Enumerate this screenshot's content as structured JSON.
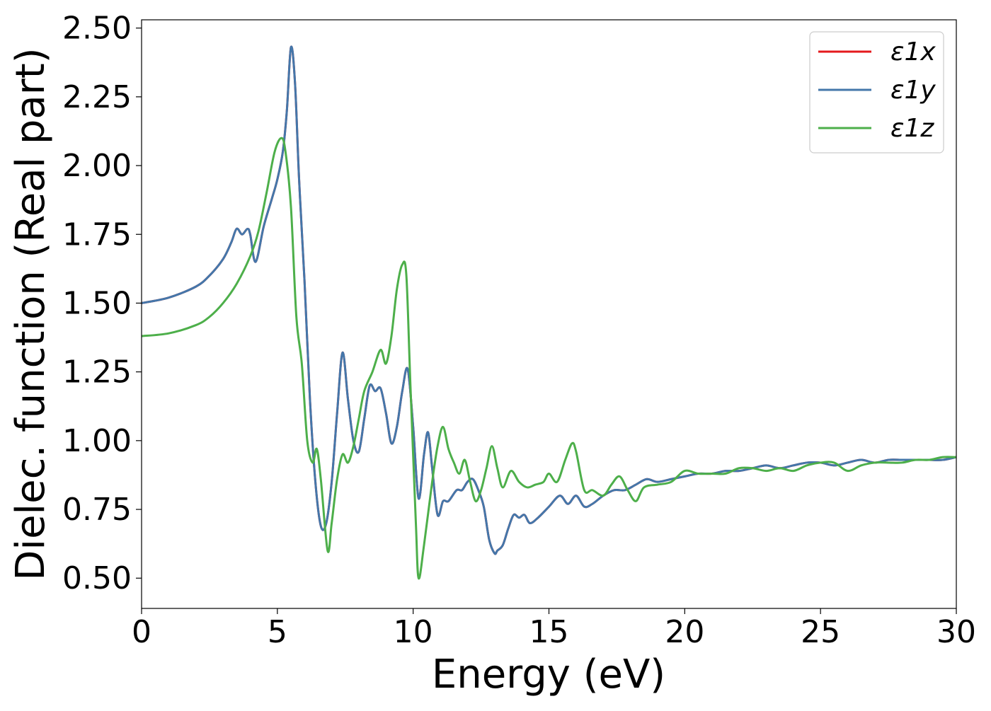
{
  "chart_data": {
    "type": "line",
    "xlabel": "Energy (eV)",
    "ylabel": "Dielec. function (Real part)",
    "xlim": [
      0,
      30
    ],
    "ylim": [
      0.39,
      2.53
    ],
    "xticks": [
      0,
      5,
      10,
      15,
      20,
      25,
      30
    ],
    "xtick_labels": [
      "0",
      "5",
      "10",
      "15",
      "20",
      "25",
      "30"
    ],
    "yticks": [
      0.5,
      0.75,
      1.0,
      1.25,
      1.5,
      1.75,
      2.0,
      2.25,
      2.5
    ],
    "ytick_labels": [
      "0.50",
      "0.75",
      "1.00",
      "1.25",
      "1.50",
      "1.75",
      "2.00",
      "2.25",
      "2.50"
    ],
    "grid": false,
    "legend_position": "top-right",
    "series": [
      {
        "name": "ε1x",
        "color": "#e41a1c",
        "x": [
          0,
          1,
          2,
          2.5,
          3,
          3.3,
          3.5,
          3.7,
          3.9,
          4.0,
          4.2,
          4.5,
          4.8,
          5.0,
          5.2,
          5.35,
          5.5,
          5.65,
          5.8,
          6.0,
          6.2,
          6.4,
          6.6,
          6.8,
          7.0,
          7.2,
          7.4,
          7.6,
          7.8,
          8.0,
          8.2,
          8.4,
          8.6,
          8.8,
          9.0,
          9.2,
          9.4,
          9.6,
          9.8,
          10.0,
          10.2,
          10.4,
          10.55,
          10.7,
          10.9,
          11.1,
          11.3,
          11.6,
          11.8,
          12.0,
          12.2,
          12.4,
          12.6,
          12.8,
          13.0,
          13.1,
          13.3,
          13.5,
          13.7,
          13.9,
          14.1,
          14.3,
          14.6,
          15.0,
          15.4,
          15.7,
          16.0,
          16.3,
          16.6,
          17.0,
          17.4,
          17.8,
          18.2,
          18.6,
          19.0,
          19.5,
          20.0,
          20.5,
          21.0,
          21.5,
          22.0,
          22.5,
          23.0,
          23.5,
          24.0,
          24.5,
          25.0,
          25.5,
          26.0,
          26.5,
          27.0,
          27.5,
          28.0,
          28.5,
          29.0,
          29.5,
          30.0
        ],
        "y": [
          1.5,
          1.52,
          1.56,
          1.6,
          1.66,
          1.72,
          1.77,
          1.75,
          1.77,
          1.75,
          1.65,
          1.78,
          1.88,
          1.95,
          2.05,
          2.2,
          2.43,
          2.3,
          1.95,
          1.58,
          1.15,
          0.85,
          0.69,
          0.7,
          0.85,
          1.1,
          1.32,
          1.15,
          1.0,
          0.96,
          1.08,
          1.2,
          1.18,
          1.19,
          1.1,
          0.99,
          1.05,
          1.18,
          1.26,
          1.05,
          0.79,
          0.95,
          1.03,
          0.9,
          0.73,
          0.78,
          0.78,
          0.82,
          0.82,
          0.85,
          0.86,
          0.82,
          0.76,
          0.64,
          0.59,
          0.6,
          0.62,
          0.68,
          0.73,
          0.72,
          0.73,
          0.7,
          0.72,
          0.76,
          0.8,
          0.77,
          0.8,
          0.76,
          0.77,
          0.8,
          0.82,
          0.82,
          0.84,
          0.86,
          0.85,
          0.86,
          0.87,
          0.88,
          0.88,
          0.89,
          0.89,
          0.9,
          0.91,
          0.9,
          0.91,
          0.92,
          0.92,
          0.91,
          0.92,
          0.93,
          0.92,
          0.93,
          0.93,
          0.93,
          0.93,
          0.93,
          0.94
        ]
      },
      {
        "name": "ε1y",
        "color": "#4477aa",
        "x": [
          0,
          1,
          2,
          2.5,
          3,
          3.3,
          3.5,
          3.7,
          3.9,
          4.0,
          4.2,
          4.5,
          4.8,
          5.0,
          5.2,
          5.35,
          5.5,
          5.65,
          5.8,
          6.0,
          6.2,
          6.4,
          6.6,
          6.8,
          7.0,
          7.2,
          7.4,
          7.6,
          7.8,
          8.0,
          8.2,
          8.4,
          8.6,
          8.8,
          9.0,
          9.2,
          9.4,
          9.6,
          9.8,
          10.0,
          10.2,
          10.4,
          10.55,
          10.7,
          10.9,
          11.1,
          11.3,
          11.6,
          11.8,
          12.0,
          12.2,
          12.4,
          12.6,
          12.8,
          13.0,
          13.1,
          13.3,
          13.5,
          13.7,
          13.9,
          14.1,
          14.3,
          14.6,
          15.0,
          15.4,
          15.7,
          16.0,
          16.3,
          16.6,
          17.0,
          17.4,
          17.8,
          18.2,
          18.6,
          19.0,
          19.5,
          20.0,
          20.5,
          21.0,
          21.5,
          22.0,
          22.5,
          23.0,
          23.5,
          24.0,
          24.5,
          25.0,
          25.5,
          26.0,
          26.5,
          27.0,
          27.5,
          28.0,
          28.5,
          29.0,
          29.5,
          30.0
        ],
        "y": [
          1.5,
          1.52,
          1.56,
          1.6,
          1.66,
          1.72,
          1.77,
          1.75,
          1.77,
          1.75,
          1.65,
          1.78,
          1.88,
          1.95,
          2.05,
          2.2,
          2.43,
          2.3,
          1.95,
          1.58,
          1.15,
          0.85,
          0.69,
          0.7,
          0.85,
          1.1,
          1.32,
          1.15,
          1.0,
          0.96,
          1.08,
          1.2,
          1.18,
          1.19,
          1.1,
          0.99,
          1.05,
          1.18,
          1.26,
          1.05,
          0.79,
          0.95,
          1.03,
          0.9,
          0.73,
          0.78,
          0.78,
          0.82,
          0.82,
          0.85,
          0.86,
          0.82,
          0.76,
          0.64,
          0.59,
          0.6,
          0.62,
          0.68,
          0.73,
          0.72,
          0.73,
          0.7,
          0.72,
          0.76,
          0.8,
          0.77,
          0.8,
          0.76,
          0.77,
          0.8,
          0.82,
          0.82,
          0.84,
          0.86,
          0.85,
          0.86,
          0.87,
          0.88,
          0.88,
          0.89,
          0.89,
          0.9,
          0.91,
          0.9,
          0.91,
          0.92,
          0.92,
          0.91,
          0.92,
          0.93,
          0.92,
          0.93,
          0.93,
          0.93,
          0.93,
          0.93,
          0.94
        ]
      },
      {
        "name": "ε1z",
        "color": "#4daf4a",
        "x": [
          0,
          1,
          2,
          2.5,
          3,
          3.5,
          4.0,
          4.3,
          4.6,
          4.9,
          5.15,
          5.3,
          5.5,
          5.7,
          5.9,
          6.1,
          6.3,
          6.45,
          6.6,
          6.85,
          7.0,
          7.2,
          7.4,
          7.6,
          7.8,
          8.0,
          8.2,
          8.5,
          8.8,
          9.0,
          9.2,
          9.4,
          9.6,
          9.75,
          9.9,
          10.1,
          10.2,
          10.4,
          10.7,
          10.9,
          11.1,
          11.3,
          11.5,
          11.7,
          11.9,
          12.1,
          12.3,
          12.5,
          12.7,
          12.9,
          13.1,
          13.3,
          13.6,
          13.9,
          14.2,
          14.5,
          14.8,
          15.0,
          15.3,
          15.6,
          15.85,
          16.0,
          16.3,
          16.6,
          17.0,
          17.3,
          17.6,
          17.9,
          18.2,
          18.5,
          19.0,
          19.5,
          20.0,
          20.5,
          21.0,
          21.5,
          22.0,
          22.5,
          23.0,
          23.5,
          24.0,
          24.5,
          25.0,
          25.5,
          26.0,
          26.5,
          27.0,
          27.5,
          28.0,
          28.5,
          29.0,
          29.5,
          30.0
        ],
        "y": [
          1.38,
          1.39,
          1.42,
          1.45,
          1.5,
          1.57,
          1.67,
          1.76,
          1.9,
          2.05,
          2.1,
          2.05,
          1.85,
          1.45,
          1.28,
          1.0,
          0.92,
          0.97,
          0.86,
          0.6,
          0.7,
          0.86,
          0.95,
          0.92,
          0.98,
          1.08,
          1.18,
          1.25,
          1.33,
          1.28,
          1.38,
          1.55,
          1.64,
          1.6,
          1.2,
          0.7,
          0.5,
          0.62,
          0.85,
          0.98,
          1.05,
          0.97,
          0.92,
          0.88,
          0.93,
          0.85,
          0.78,
          0.82,
          0.9,
          0.98,
          0.9,
          0.83,
          0.89,
          0.85,
          0.83,
          0.84,
          0.85,
          0.88,
          0.85,
          0.93,
          0.99,
          0.96,
          0.82,
          0.82,
          0.8,
          0.84,
          0.87,
          0.82,
          0.78,
          0.83,
          0.84,
          0.85,
          0.89,
          0.88,
          0.88,
          0.88,
          0.9,
          0.9,
          0.89,
          0.9,
          0.89,
          0.91,
          0.92,
          0.92,
          0.89,
          0.91,
          0.92,
          0.92,
          0.92,
          0.93,
          0.93,
          0.94,
          0.94
        ]
      }
    ]
  }
}
